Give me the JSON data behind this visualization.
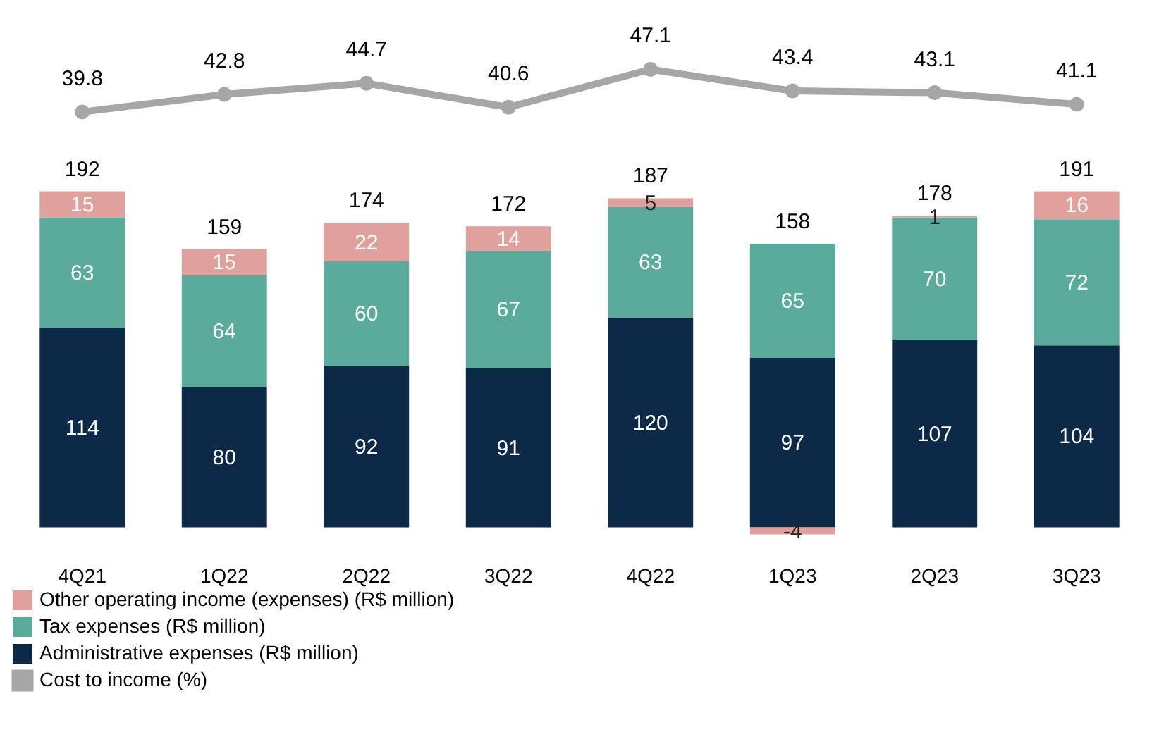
{
  "chart_data": [
    {
      "type": "line",
      "categories": [
        null,
        null,
        null,
        null,
        null,
        null,
        null,
        null
      ],
      "tick_labels": false,
      "data_labels": true,
      "legend": "bottom",
      "series": [
        {
          "name": "Cost to income (%)",
          "color": "#a6a6a6",
          "marker": "circle",
          "values": [
            39.8,
            42.8,
            44.7,
            40.6,
            47.1,
            43.4,
            43.1,
            41.1
          ]
        }
      ]
    },
    {
      "type": "bar",
      "stacked": true,
      "categories": [
        "4Q21",
        "1Q22",
        "2Q22",
        "3Q22",
        "4Q22",
        "1Q23",
        "2Q23",
        "3Q23"
      ],
      "series": [
        {
          "name": "Administrative expenses (R$ million)",
          "color": "#0c2a48",
          "values": [
            114,
            80,
            92,
            91,
            120,
            97,
            107,
            104
          ]
        },
        {
          "name": "Tax expenses (R$ million)",
          "color": "#5aab9c",
          "values": [
            63,
            64,
            60,
            67,
            63,
            65,
            70,
            72
          ]
        },
        {
          "name": "Other operating income (expenses) (R$ million)",
          "color": "#e0a19c",
          "values": [
            15,
            15,
            22,
            14,
            5,
            -4,
            1,
            16
          ]
        }
      ],
      "tick_labels": "x",
      "data_labels": true,
      "totals": [
        "192",
        "159",
        "174",
        "172",
        "187",
        "158",
        "178",
        "191"
      ],
      "grid": false,
      "legend": "bottom"
    }
  ]
}
